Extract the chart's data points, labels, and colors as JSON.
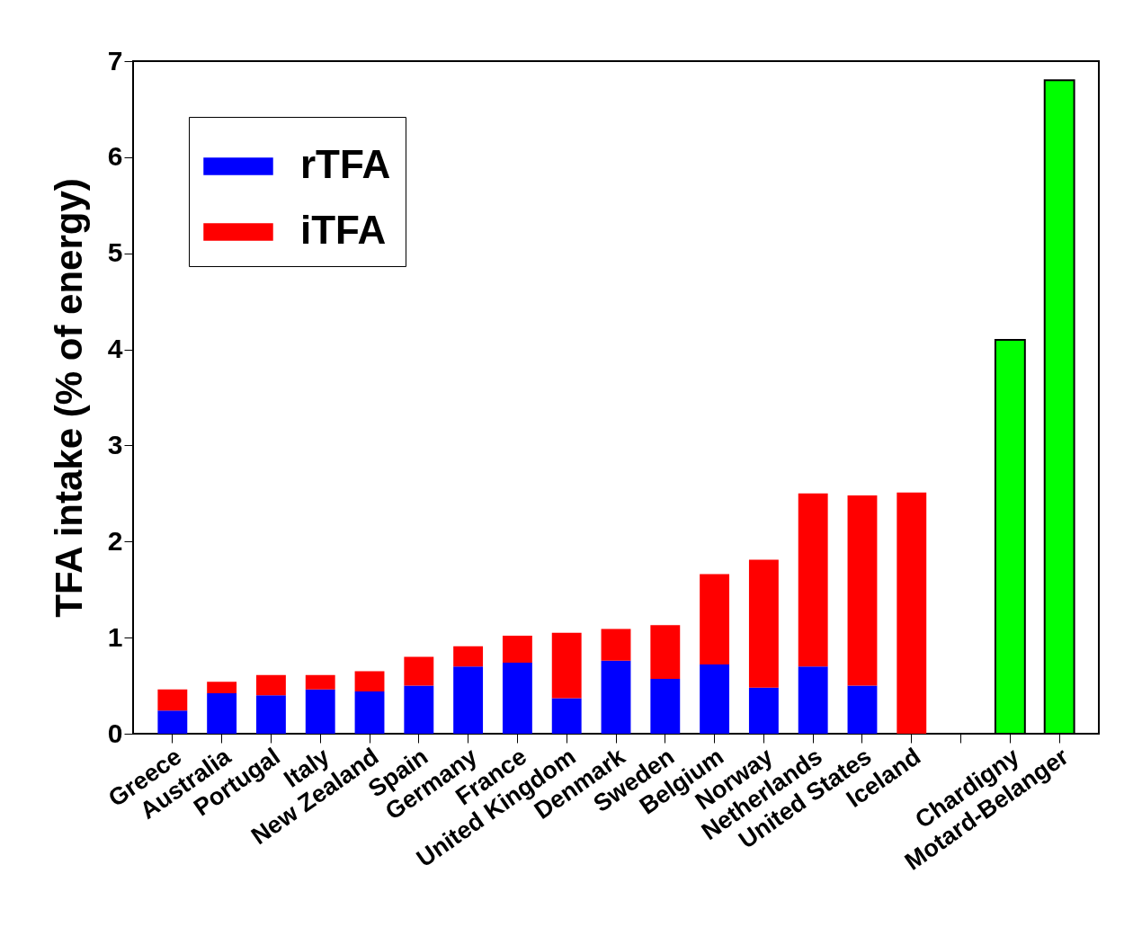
{
  "chart_data": {
    "type": "bar",
    "ylabel": "TFA intake (% of energy)",
    "categories": [
      "Greece",
      "Australia",
      "Portugal",
      "Italy",
      "New Zealand",
      "Spain",
      "Germany",
      "France",
      "United Kingdom",
      "Denmark",
      "Sweden",
      "Belgium",
      "Norway",
      "Netherlands",
      "United States",
      "Iceland",
      null,
      "Chardigny",
      "Motard-Belanger"
    ],
    "stacked": true,
    "series": [
      {
        "name": "rTFA",
        "color": "#0000ff",
        "values": [
          0.24,
          0.42,
          0.4,
          0.46,
          0.44,
          0.5,
          0.7,
          0.74,
          0.37,
          0.76,
          0.57,
          0.72,
          0.48,
          0.7,
          0.5,
          0,
          null,
          null,
          null
        ]
      },
      {
        "name": "iTFA",
        "color": "#ff0000",
        "values": [
          0.22,
          0.12,
          0.21,
          0.15,
          0.21,
          0.3,
          0.21,
          0.28,
          0.68,
          0.33,
          0.56,
          0.94,
          1.33,
          1.8,
          1.98,
          2.51,
          null,
          null,
          null
        ]
      },
      {
        "color": "#00ff00",
        "values": [
          null,
          null,
          null,
          null,
          null,
          null,
          null,
          null,
          null,
          null,
          null,
          null,
          null,
          null,
          null,
          null,
          null,
          4.1,
          6.8
        ]
      }
    ],
    "ylim": [
      0,
      7
    ],
    "yticks": [
      0,
      1,
      2,
      3,
      4,
      5,
      6,
      7
    ],
    "grid": false,
    "legend": "top left"
  }
}
